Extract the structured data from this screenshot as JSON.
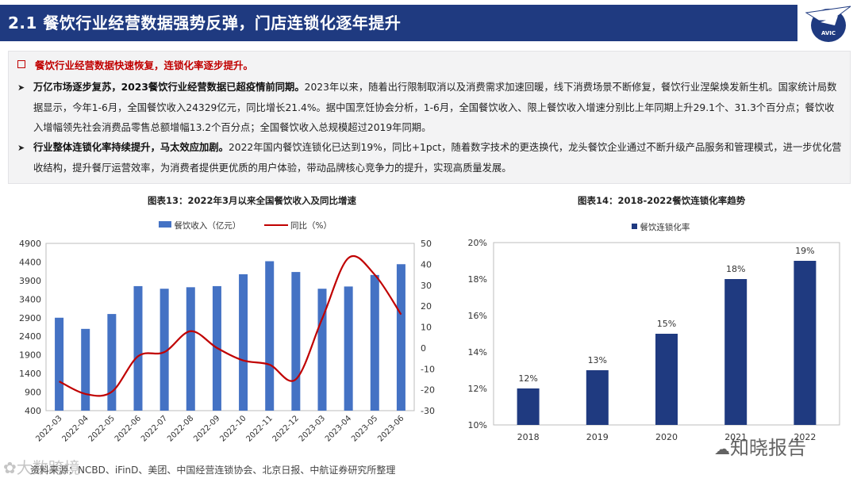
{
  "header": {
    "title": "2.1 餐饮行业经营数据强势反弹，门店连锁化逐年提升",
    "logo_icon": "airplane-logo-icon",
    "logo_text": "AVIC",
    "bar_color": "#1f3a80"
  },
  "summary": {
    "headline": "餐饮行业经营数据快速恢复，连锁化率逐步提升。",
    "bullets": [
      {
        "bold": "万亿市场逐步复苏，2023餐饮行业经营数据已超疫情前同期。",
        "text": "2023年以来，随着出行限制取消以及消费需求加速回暖，线下消费场景不断修复，餐饮行业涅槃焕发新生机。国家统计局数据显示，今年1-6月，全国餐饮收入24329亿元，同比增长21.4%。据中国烹饪协会分析，1-6月，全国餐饮收入、限上餐饮收入增速分别比上年同期上升29.1个、31.3个百分点；餐饮收入增幅领先社会消费品零售总额增幅13.2个百分点；全国餐饮收入总规模超过2019年同期。"
      },
      {
        "bold": "行业整体连锁化率持续提升，马太效应加剧。",
        "text": "2022年国内餐饮连锁化已达到19%，同比+1pct，随着数字技术的更迭换代，龙头餐饮企业通过不断升级产品服务和管理模式，进一步优化营收结构，提升餐厅运营效率，为消费者提供更优质的用户体验，带动品牌核心竞争力的提升，实现高质量发展。"
      }
    ]
  },
  "chart_data": [
    {
      "type": "bar",
      "title": "图表13：2022年3月以来全国餐饮收入及同比增速",
      "categories": [
        "2022-03",
        "2022-04",
        "2022-05",
        "2022-06",
        "2022-07",
        "2022-08",
        "2022-09",
        "2022-10",
        "2022-11",
        "2022-12",
        "2023-03",
        "2023-04",
        "2023-05",
        "2023-06"
      ],
      "series": [
        {
          "name": "餐饮收入（亿元）",
          "type": "bar",
          "axis": "left",
          "color": "#4472c4",
          "values": [
            2900,
            2600,
            3000,
            3750,
            3680,
            3720,
            3750,
            4070,
            4420,
            4130,
            3680,
            3740,
            4050,
            4340
          ]
        },
        {
          "name": "同比（%）",
          "type": "line",
          "axis": "right",
          "color": "#c00000",
          "values": [
            -16,
            -22,
            -21,
            -4,
            -2,
            8,
            0,
            -6,
            -8,
            -15,
            14,
            43,
            35,
            16
          ]
        }
      ],
      "left_axis": {
        "ticks": [
          400,
          900,
          1400,
          1900,
          2400,
          2900,
          3400,
          3900,
          4400,
          4900
        ],
        "labels": [
          "400",
          "900",
          "1400",
          "1900",
          "2400",
          "2900",
          "3400",
          "3900",
          "4400",
          "4900"
        ],
        "range": [
          400,
          4900
        ]
      },
      "right_axis": {
        "ticks": [
          -30,
          -20,
          -10,
          0,
          10,
          20,
          30,
          40,
          50
        ],
        "labels": [
          "-30",
          "-20",
          "-10",
          "0",
          "10",
          "20",
          "30",
          "40",
          "50"
        ],
        "range": [
          -30,
          50
        ]
      },
      "grid": false,
      "legend": "top"
    },
    {
      "type": "bar",
      "title": "图表14：2018-2022餐饮连锁化率趋势",
      "categories": [
        "2018",
        "2019",
        "2020",
        "2021",
        "2022"
      ],
      "series": [
        {
          "name": "餐饮连锁化率",
          "color": "#1f3a80",
          "values": [
            12,
            13,
            15,
            18,
            19
          ],
          "data_labels": [
            "12%",
            "13%",
            "15%",
            "18%",
            "19%"
          ]
        }
      ],
      "y_axis": {
        "ticks": [
          10,
          12,
          14,
          16,
          18,
          20
        ],
        "labels": [
          "10%",
          "12%",
          "14%",
          "16%",
          "18%",
          "20%"
        ],
        "range": [
          10,
          20
        ]
      },
      "grid": false,
      "legend": "top"
    }
  ],
  "footer": {
    "source": "资料来源：NCBD、iFinD、美团、中国经营连锁协会、北京日报、中航证券研究所整理"
  },
  "watermarks": {
    "left": "大数跨境",
    "right": "知晓报告",
    "left_icon": "paw-icon",
    "right_icon": "wechat-icon"
  }
}
